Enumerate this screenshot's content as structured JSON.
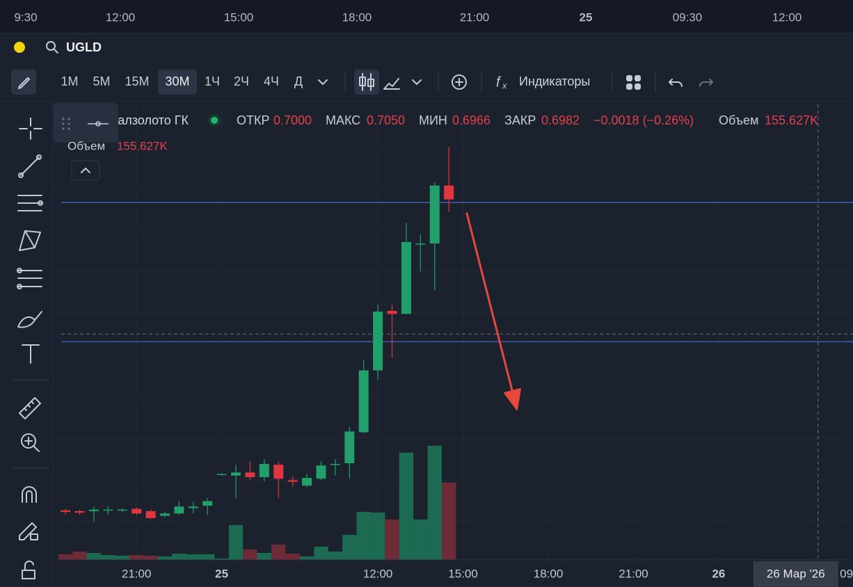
{
  "top_axis": {
    "labels": [
      "9:30",
      "12:00",
      "15:00",
      "18:00",
      "21:00",
      "25",
      "09:30",
      "12:00"
    ],
    "bold": [
      5
    ]
  },
  "header": {
    "ticker": "UGLD"
  },
  "toolbar": {
    "intervals": [
      "1М",
      "5М",
      "15М",
      "30М",
      "1Ч",
      "2Ч",
      "4Ч",
      "Д"
    ],
    "active_interval": 3,
    "indicators": "Индикаторы"
  },
  "chart_data": {
    "type": "candlestick",
    "title": "Южуралзолото ГК",
    "legend": {
      "open_label": "ОТКР",
      "open": "0.7000",
      "high_label": "МАКС",
      "high": "0.7050",
      "low_label": "МИН",
      "low": "0.6966",
      "close_label": "ЗАКР",
      "close": "0.6982",
      "change": "−0.0018 (−0.26%)",
      "volume_label": "Объем",
      "volume": "155.627K"
    },
    "volume_pane": {
      "label": "Объем",
      "value": "155.627K"
    },
    "x": [
      0,
      1,
      2,
      3,
      4,
      5,
      6,
      7,
      8,
      9,
      10,
      11,
      12,
      13,
      14,
      15,
      16,
      17,
      18,
      19,
      20,
      21,
      22,
      23,
      24,
      25,
      26,
      27
    ],
    "open": [
      0.658,
      0.6579,
      0.6579,
      0.658,
      0.658,
      0.6582,
      0.6579,
      0.6573,
      0.6576,
      0.6583,
      0.6586,
      0.6626,
      0.6625,
      0.6629,
      0.6623,
      0.6639,
      0.6619,
      0.6612,
      0.6621,
      0.6639,
      0.6641,
      0.6681,
      0.6761,
      0.6838,
      0.6834,
      0.6924,
      0.6925,
      0.7
    ],
    "high": [
      0.6582,
      0.6581,
      0.6585,
      0.6585,
      0.6583,
      0.6584,
      0.6581,
      0.6578,
      0.6592,
      0.6591,
      0.6596,
      0.6628,
      0.6639,
      0.6644,
      0.6646,
      0.6643,
      0.6624,
      0.6627,
      0.6644,
      0.6646,
      0.6688,
      0.6774,
      0.6846,
      0.6846,
      0.6952,
      0.6937,
      0.7004,
      0.705
    ],
    "low": [
      0.6575,
      0.6574,
      0.6566,
      0.6574,
      0.6578,
      0.6574,
      0.6569,
      0.6571,
      0.6574,
      0.6576,
      0.6574,
      0.6625,
      0.6596,
      0.6619,
      0.6617,
      0.6596,
      0.661,
      0.661,
      0.6619,
      0.6625,
      0.6621,
      0.668,
      0.6749,
      0.6777,
      0.6834,
      0.6889,
      0.6864,
      0.6966
    ],
    "close": [
      0.6578,
      0.6577,
      0.6581,
      0.6581,
      0.6581,
      0.6576,
      0.657,
      0.6576,
      0.6585,
      0.6585,
      0.6592,
      0.6627,
      0.6629,
      0.6623,
      0.664,
      0.6621,
      0.6617,
      0.6622,
      0.6638,
      0.664,
      0.6682,
      0.6761,
      0.6837,
      0.6834,
      0.6927,
      0.6925,
      0.7,
      0.6982
    ],
    "volume": [
      11200,
      16800,
      14000,
      9800,
      8400,
      9800,
      8400,
      7000,
      12600,
      11200,
      11200,
      2800,
      70100,
      21000,
      14000,
      30800,
      12600,
      7000,
      26600,
      16800,
      50500,
      96700,
      95300,
      81300,
      215900,
      81300,
      229900,
      155627
    ],
    "xlim": [
      -0.3,
      55.46
    ],
    "ylim": [
      0.6516,
      0.7105
    ],
    "vlim": [
      0,
      560000
    ],
    "xticks": [
      {
        "value": 5,
        "label": "21:00"
      },
      {
        "value": 11,
        "label": "25"
      },
      {
        "value": 22,
        "label": "12:00"
      },
      {
        "value": 28,
        "label": "15:00"
      },
      {
        "value": 34,
        "label": "18:00"
      },
      {
        "value": 40,
        "label": "21:00"
      },
      {
        "value": 46,
        "label": "26"
      },
      {
        "value": 55,
        "label": "09"
      }
    ],
    "bold_xticks": [
      1,
      6
    ],
    "levels": [
      0.6978,
      0.6798
    ],
    "crosshair": {
      "x": 53,
      "x_label": "26 Мар '26",
      "y": 0.6808
    },
    "grid": true,
    "up_color": "#22a06b",
    "down_color": "#e0363f",
    "volume_up_color": "#1d6a53",
    "volume_down_color": "#6c2b36",
    "level_color": "#3f5fae"
  }
}
